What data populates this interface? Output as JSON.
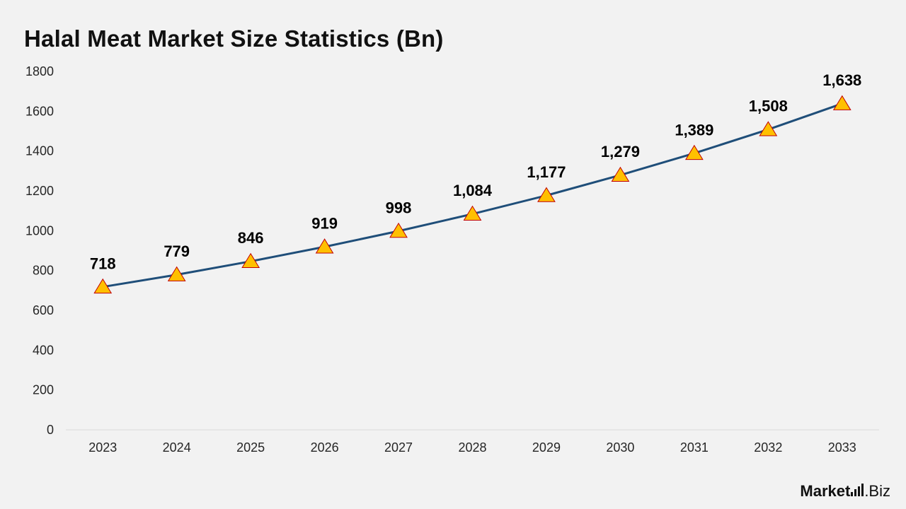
{
  "chart_data": {
    "type": "line",
    "title": "Halal Meat Market Size Statistics (Bn)",
    "xlabel": "",
    "ylabel": "",
    "categories": [
      "2023",
      "2024",
      "2025",
      "2026",
      "2027",
      "2028",
      "2029",
      "2030",
      "2031",
      "2032",
      "2033"
    ],
    "values": [
      718,
      779,
      846,
      919,
      998,
      1084,
      1177,
      1279,
      1389,
      1508,
      1638
    ],
    "data_labels": [
      "718",
      "779",
      "846",
      "919",
      "998",
      "1,084",
      "1,177",
      "1,279",
      "1,389",
      "1,508",
      "1,638"
    ],
    "y_ticks": [
      0,
      200,
      400,
      600,
      800,
      1000,
      1200,
      1400,
      1600,
      1800
    ],
    "ylim": [
      0,
      1800
    ],
    "grid": false,
    "legend": "none",
    "marker": "triangle",
    "colors": {
      "line": "#1f4e79",
      "marker_fill": "#ffc000",
      "marker_stroke": "#c00000",
      "axis": "#d9d9d9",
      "tick_text": "#262626",
      "label_text": "#000000",
      "background": "#f2f2f2"
    }
  },
  "branding": {
    "logo_main": "Market",
    "logo_suffix": ".Biz"
  }
}
